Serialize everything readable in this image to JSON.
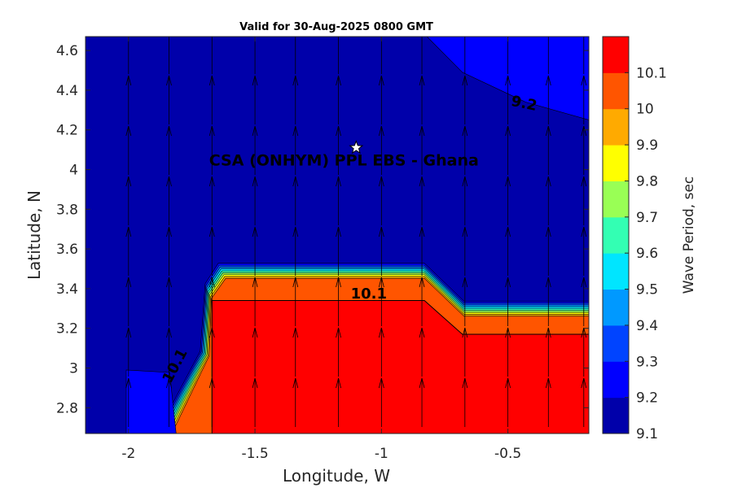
{
  "chart_data": {
    "type": "filled-contour",
    "title": "Valid for 30-Aug-2025 0800 GMT",
    "xlabel": "Longitude, W",
    "ylabel": "Latitude, N",
    "xlim": [
      -2.17,
      -0.18
    ],
    "ylim": [
      2.67,
      4.67
    ],
    "xticks": [
      -2,
      -1.5,
      -1,
      -0.5
    ],
    "xtick_labels": [
      "-2",
      "-1.5",
      "-1",
      "-0.5"
    ],
    "yticks": [
      2.8,
      3,
      3.2,
      3.4,
      3.6,
      3.8,
      4,
      4.2,
      4.4,
      4.6
    ],
    "ytick_labels": [
      "2.8",
      "3",
      "3.2",
      "3.4",
      "3.6",
      "3.8",
      "4",
      "4.2",
      "4.4",
      "4.6"
    ],
    "colorbar": {
      "label": "Wave Period, sec",
      "levels": [
        9.1,
        9.2,
        9.3,
        9.4,
        9.5,
        9.6,
        9.7,
        9.8,
        9.9,
        10,
        10.1
      ],
      "tick_labels": [
        "9.1",
        "9.2",
        "9.3",
        "9.4",
        "9.5",
        "9.6",
        "9.7",
        "9.8",
        "9.9",
        "10",
        "10.1"
      ],
      "colors": [
        "#0000AA",
        "#0000FF",
        "#0044FF",
        "#0099FF",
        "#00E5FF",
        "#33FFB3",
        "#99FF55",
        "#FFFF00",
        "#FFAA00",
        "#FF5500",
        "#FF0000"
      ]
    },
    "regions": [
      {
        "name": "low",
        "level": 9.1,
        "color": "#0000AA"
      },
      {
        "name": "nw-mid",
        "level": 9.2,
        "color": "#0000FF",
        "polygon_data": [
          [
            -0.82,
            4.67
          ],
          [
            -0.68,
            4.49
          ],
          [
            -0.43,
            4.34
          ],
          [
            -0.18,
            4.25
          ],
          [
            -0.18,
            4.67
          ]
        ]
      },
      {
        "name": "high-shelf",
        "level": 10.1,
        "color": "#FF0000",
        "polygon_data": [
          [
            -1.67,
            2.67
          ],
          [
            -1.67,
            3.34
          ],
          [
            -0.83,
            3.34
          ],
          [
            -0.68,
            3.17
          ],
          [
            -0.18,
            3.17
          ],
          [
            -0.18,
            2.67
          ]
        ]
      }
    ],
    "contour_line_levels": [
      9.2,
      10.1
    ],
    "contour_labels": [
      {
        "text": "9.2",
        "x": -0.44,
        "y": 4.31
      },
      {
        "text": "10.1",
        "x": -1.05,
        "y": 3.35
      },
      {
        "text": "10.1",
        "x": -1.8,
        "y": 3.0
      }
    ],
    "location_marker": {
      "label": "CSA (ONHYM) PPL EBS  - Ghana",
      "x": -1.1,
      "y": 4.11,
      "symbol": "star"
    },
    "vector_field": {
      "type": "quiver",
      "direction": "north",
      "columns_x": [
        -2.0,
        -1.84,
        -1.67,
        -1.5,
        -1.34,
        -1.17,
        -1.0,
        -0.84,
        -0.67,
        -0.5,
        -0.34,
        -0.2
      ]
    }
  }
}
